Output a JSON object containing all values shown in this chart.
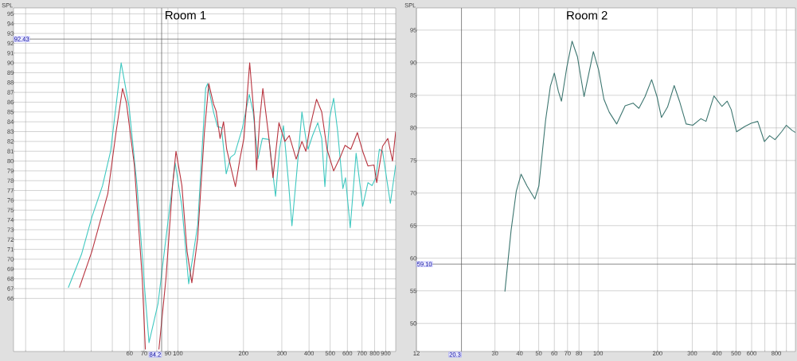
{
  "chart_data": [
    {
      "type": "line",
      "title": "Room 1",
      "ylabel": "SPL",
      "log": "x",
      "grid": true,
      "xlim": [
        17.6,
        1000
      ],
      "ylim": [
        60.6,
        95.6
      ],
      "xticks": [
        {
          "value": 20,
          "label": null
        },
        {
          "value": 30,
          "label": null
        },
        {
          "value": 40,
          "label": null
        },
        {
          "value": 50,
          "label": null
        },
        60,
        70,
        {
          "value": 80,
          "label": null
        },
        90,
        100,
        200,
        300,
        400,
        500,
        600,
        700,
        800,
        900
      ],
      "yticks": [
        66,
        67,
        68,
        69,
        70,
        71,
        72,
        73,
        74,
        75,
        76,
        77,
        78,
        79,
        80,
        81,
        82,
        83,
        84,
        85,
        86,
        87,
        88,
        89,
        90,
        91,
        92,
        93,
        94,
        95
      ],
      "ref_lines": [
        {
          "axis": "y",
          "value": 92.43,
          "label": "92.43",
          "color": "#555555"
        },
        {
          "axis": "x",
          "value": 84.2,
          "label": "84.2",
          "color": "#555555"
        }
      ],
      "series": [
        {
          "color": "#3fc8c0",
          "x": [
            31.4,
            36.1,
            40.3,
            45.1,
            49.1,
            54.9,
            59.7,
            64.9,
            70.5,
            73.7,
            81.1,
            88.2,
            97.2,
            104.3,
            112.1,
            123.3,
            134.1,
            137.0,
            145.8,
            152.0,
            158.5,
            166.7,
            174.7,
            182.2,
            198.0,
            212.5,
            221.6,
            232.9,
            244.2,
            261.9,
            280.8,
            292.8,
            305.3,
            322.8,
            333.9,
            351.2,
            371.1,
            386.9,
            395.8,
            415.1,
            438.7,
            457.5,
            473.0,
            497.4,
            518.7,
            540.9,
            572.1,
            588.2,
            618.4,
            657.9,
            705.2,
            745.9,
            778,
            811,
            841,
            870,
            945,
            1000
          ],
          "values": [
            67.1,
            70.5,
            74.3,
            77.5,
            81.0,
            90.0,
            85.5,
            77.5,
            66.8,
            61.5,
            65.5,
            72.2,
            79.8,
            75.4,
            67.5,
            73.5,
            87.4,
            87.9,
            85.0,
            83.5,
            83.4,
            78.7,
            80.4,
            80.7,
            83.4,
            86.8,
            85.0,
            80.2,
            82.3,
            82.2,
            76.4,
            81.2,
            83.6,
            77.5,
            73.4,
            78.8,
            85.0,
            82.3,
            81.2,
            82.6,
            83.9,
            82.3,
            77.4,
            84.4,
            86.4,
            83.1,
            77.2,
            78.3,
            73.2,
            80.8,
            75.4,
            77.8,
            77.5,
            78.3,
            81.2,
            81.0,
            75.7,
            79.6
          ]
        },
        {
          "color": "#b8343f",
          "x": [
            35.3,
            40.3,
            47.7,
            51.9,
            55.7,
            58.0,
            63.1,
            68.6,
            70.9,
            76.0,
            81.8,
            88.2,
            94.5,
            98.0,
            104.3,
            110.2,
            115.9,
            123.3,
            132.2,
            138.6,
            145.8,
            149.8,
            156.2,
            162.0,
            167.5,
            176.2,
            183.7,
            192.6,
            200.9,
            213.6,
            224.5,
            229.6,
            237.4,
            245.5,
            261.9,
            273.2,
            291.1,
            309.7,
            324.5,
            349.2,
            371.1,
            386.9,
            403.5,
            432.9,
            457.5,
            483.8,
            518.7,
            556.5,
            585.2,
            622,
            666.8,
            705.2,
            745.9,
            795,
            818,
            870,
            920,
            967,
            1000
          ],
          "values": [
            67.1,
            70.8,
            76.7,
            82.8,
            87.4,
            86.0,
            79.6,
            68.1,
            60.8,
            null,
            60.8,
            68.1,
            77.5,
            81.0,
            77.5,
            70.8,
            67.6,
            72.2,
            82.8,
            87.9,
            85.8,
            85.1,
            82.3,
            84.0,
            81.2,
            79.1,
            77.4,
            80.2,
            82.3,
            90.0,
            84.2,
            79.1,
            84.2,
            87.4,
            82.3,
            78.3,
            83.9,
            82.0,
            82.6,
            80.2,
            82.0,
            81.0,
            83.4,
            86.3,
            85.0,
            81.2,
            79.0,
            80.4,
            81.6,
            81.2,
            82.9,
            81.0,
            79.5,
            79.6,
            77.8,
            81.5,
            82.3,
            80.0,
            83.0
          ]
        }
      ]
    },
    {
      "type": "line",
      "title": "Room 2",
      "ylabel": "SPL",
      "log": "x",
      "grid": true,
      "xlim": [
        12,
        1000
      ],
      "ylim": [
        45.7,
        98.4
      ],
      "xticks": [
        12,
        30,
        40,
        50,
        60,
        70,
        80,
        100,
        200,
        300,
        400,
        500,
        600,
        {
          "value": 700,
          "label": null
        },
        800,
        {
          "value": 900,
          "label": null
        }
      ],
      "yticks": [
        50,
        55,
        60,
        65,
        70,
        75,
        80,
        85,
        90,
        95
      ],
      "ref_lines": [
        {
          "axis": "y",
          "value": 59.1,
          "label": "59.10",
          "color": "#555555"
        },
        {
          "axis": "x",
          "value": 20.3,
          "label": "20.3",
          "color": "#555555"
        }
      ],
      "series": [
        {
          "color": "#3d7670",
          "x": [
            33.7,
            36.2,
            38.5,
            40.7,
            43.6,
            47.8,
            50.1,
            54.2,
            57.3,
            60.0,
            62.9,
            65.2,
            69.4,
            73.8,
            78.6,
            84.9,
            94.6,
            100.6,
            107.0,
            113.9,
            124.2,
            137.1,
            150.4,
            161.0,
            172.9,
            186.8,
            198.8,
            209.4,
            224.9,
            242.9,
            258.5,
            279.3,
            301.9,
            331.3,
            352.3,
            386.5,
            424.0,
            451.1,
            472.7,
            503.0,
            552.1,
            596.3,
            644.1,
            696.1,
            740.2,
            787.8,
            850.7,
            899.5,
            963.6,
            1000
          ],
          "values": [
            54.9,
            64.2,
            70.3,
            72.9,
            71.1,
            69.1,
            71.1,
            81.2,
            86.4,
            88.4,
            85.6,
            84.1,
            89.3,
            93.3,
            90.9,
            84.8,
            91.7,
            88.9,
            84.4,
            82.4,
            80.6,
            83.4,
            83.8,
            83.0,
            84.8,
            87.4,
            84.8,
            81.6,
            83.2,
            86.5,
            84.1,
            80.6,
            80.4,
            81.4,
            81.0,
            84.9,
            83.3,
            84.1,
            82.8,
            79.4,
            80.2,
            80.7,
            81.0,
            77.9,
            78.8,
            78.2,
            79.4,
            80.4,
            79.6,
            79.3
          ]
        }
      ]
    }
  ]
}
